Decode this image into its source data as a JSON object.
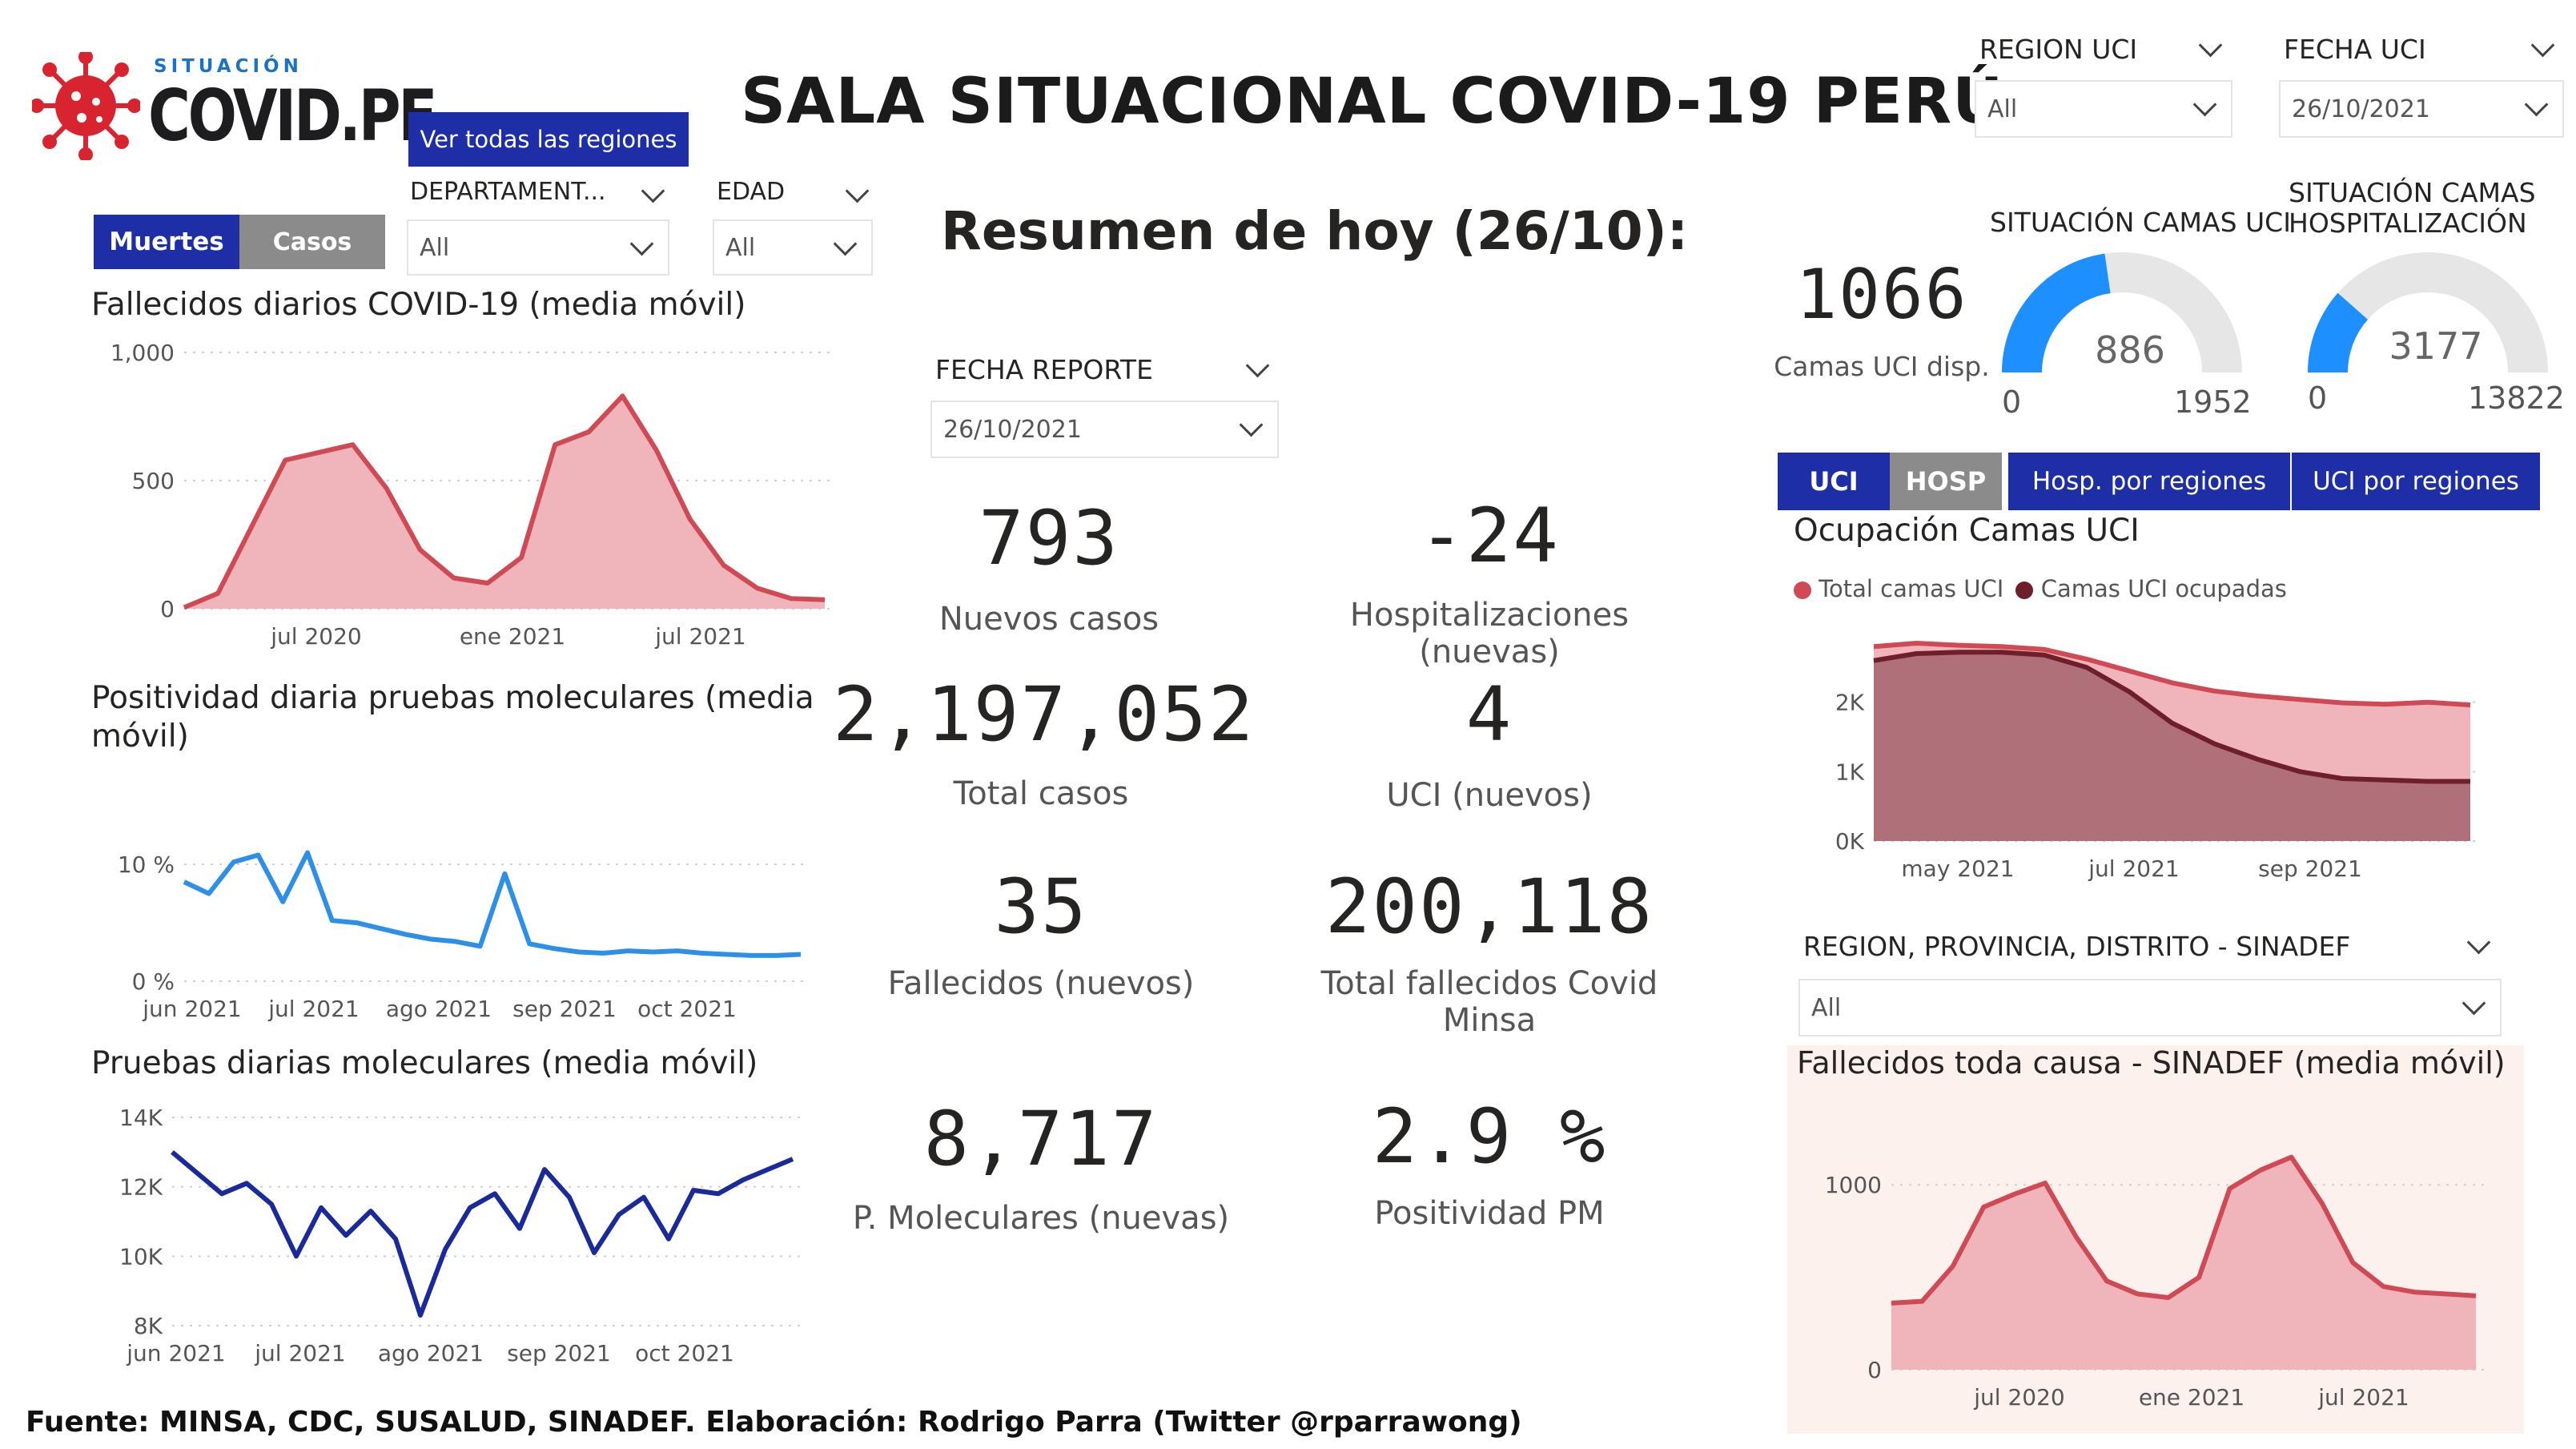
{
  "logo": {
    "small": "SITUACIÓN",
    "big": "COVID.PE"
  },
  "header": {
    "title": "SALA SITUACIONAL COVID-19 PERÚ",
    "all_regions_button": "Ver todas las regiones"
  },
  "left_toggle": {
    "muertes": "Muertes",
    "casos": "Casos"
  },
  "filters": {
    "departamento": {
      "label": "DEPARTAMENT...",
      "value": "All"
    },
    "edad": {
      "label": "EDAD",
      "value": "All"
    },
    "region_uci": {
      "label": "REGION UCI",
      "value": "All"
    },
    "fecha_uci": {
      "label": "FECHA UCI",
      "value": "26/10/2021"
    },
    "fecha_reporte": {
      "label": "FECHA REPORTE",
      "value": "26/10/2021"
    },
    "sinadef_region": {
      "label": "REGION, PROVINCIA, DISTRITO - SINADEF",
      "value": "All"
    }
  },
  "summary": {
    "heading": "Resumen de hoy (26/10):",
    "kpis": [
      {
        "value": "793",
        "label": "Nuevos casos"
      },
      {
        "value": "-24",
        "label": "Hospitalizaciones (nuevas)"
      },
      {
        "value": "2,197,052",
        "label": "Total casos"
      },
      {
        "value": "4",
        "label": "UCI (nuevos)"
      },
      {
        "value": "35",
        "label": "Fallecidos  (nuevos)"
      },
      {
        "value": "200,118",
        "label": "Total fallecidos Covid Minsa"
      },
      {
        "value": "8,717",
        "label": "P. Moleculares (nuevas)"
      },
      {
        "value": "2.9 %",
        "label": "Positividad PM"
      }
    ]
  },
  "beds": {
    "available_value": "1066",
    "available_label": "Camas UCI disp.",
    "uci_gauge": {
      "title": "SITUACIÓN CAMAS UCI",
      "value": "886",
      "min": "0",
      "max": "1952",
      "fraction": 0.454
    },
    "hosp_gauge": {
      "title": "SITUACIÓN CAMAS HOSPITALIZACIÓN",
      "value": "3177",
      "min": "0",
      "max": "13822",
      "fraction": 0.23
    }
  },
  "right_tabs": {
    "uci": "UCI",
    "hosp": "HOSP",
    "hosp_regiones": "Hosp. por regiones",
    "uci_regiones": "UCI por regiones"
  },
  "colors": {
    "navy": "#1d2ea6",
    "grey": "#8b8b8b",
    "red": "#d04a55",
    "redfill": "#efb5bb",
    "darkred": "#6e1f2a",
    "blue": "#2e8fe8",
    "darkblue": "#1a2a9a"
  },
  "chart_data": [
    {
      "type": "area",
      "title": "Fallecidos diarios COVID-19 (media móvil)",
      "x_ticks": [
        "jul 2020",
        "ene 2021",
        "jul 2021"
      ],
      "y_ticks": [
        "0",
        "500",
        "1,000"
      ],
      "ylim": [
        0,
        1000
      ],
      "x": [
        "2020-03",
        "2020-04",
        "2020-05",
        "2020-06",
        "2020-07",
        "2020-08",
        "2020-09",
        "2020-10",
        "2020-11",
        "2020-12",
        "2021-01",
        "2021-02",
        "2021-03",
        "2021-04",
        "2021-05",
        "2021-06",
        "2021-07",
        "2021-08",
        "2021-09",
        "2021-10"
      ],
      "values": [
        5,
        60,
        320,
        580,
        610,
        640,
        470,
        230,
        120,
        100,
        200,
        640,
        690,
        830,
        620,
        350,
        170,
        80,
        40,
        35
      ]
    },
    {
      "type": "line",
      "title": "Positividad diaria pruebas moleculares (media móvil)",
      "x_ticks": [
        "jun 2021",
        "jul 2021",
        "ago 2021",
        "sep 2021",
        "oct 2021"
      ],
      "y_ticks": [
        "0 %",
        "10 %"
      ],
      "ylim": [
        0,
        12
      ],
      "values": [
        8.5,
        7.5,
        10.2,
        10.8,
        6.8,
        11.0,
        5.2,
        5.0,
        4.5,
        4.0,
        3.6,
        3.4,
        3.0,
        9.2,
        3.2,
        2.8,
        2.5,
        2.4,
        2.6,
        2.5,
        2.6,
        2.4,
        2.3,
        2.2,
        2.2,
        2.3
      ]
    },
    {
      "type": "line",
      "title": "Pruebas diarias moleculares (media móvil)",
      "x_ticks": [
        "jun 2021",
        "jul 2021",
        "ago 2021",
        "sep 2021",
        "oct 2021"
      ],
      "y_ticks": [
        "8K",
        "10K",
        "12K",
        "14K"
      ],
      "ylim": [
        8000,
        14000
      ],
      "values": [
        13000,
        12400,
        11800,
        12100,
        11500,
        10000,
        11400,
        10600,
        11300,
        10500,
        8300,
        10200,
        11400,
        11800,
        10800,
        12500,
        11700,
        10100,
        11200,
        11700,
        10500,
        11900,
        11800,
        12200,
        12500,
        12800
      ]
    },
    {
      "type": "area",
      "title": "Ocupación Camas UCI",
      "legend": [
        "Total camas UCI",
        "Camas UCI ocupadas"
      ],
      "legend_position": "top-left",
      "x_ticks": [
        "may 2021",
        "jul 2021",
        "sep 2021"
      ],
      "y_ticks": [
        "0K",
        "1K",
        "2K"
      ],
      "ylim": [
        0,
        3000
      ],
      "series": [
        {
          "name": "Total camas UCI",
          "values": [
            2800,
            2850,
            2820,
            2800,
            2760,
            2620,
            2450,
            2280,
            2160,
            2090,
            2040,
            1990,
            1970,
            2000,
            1960
          ]
        },
        {
          "name": "Camas UCI ocupadas",
          "values": [
            2600,
            2700,
            2720,
            2720,
            2680,
            2500,
            2150,
            1700,
            1400,
            1180,
            1000,
            900,
            880,
            860,
            860
          ]
        }
      ]
    },
    {
      "type": "area",
      "title": "Fallecidos toda causa - SINADEF (media móvil)",
      "x_ticks": [
        "jul 2020",
        "ene 2021",
        "jul 2021"
      ],
      "y_ticks": [
        "0",
        "1000"
      ],
      "ylim": [
        0,
        1300
      ],
      "values": [
        360,
        370,
        560,
        880,
        950,
        1010,
        720,
        480,
        410,
        390,
        500,
        980,
        1080,
        1150,
        900,
        580,
        450,
        420,
        410,
        400
      ]
    }
  ],
  "footer": "Fuente: MINSA, CDC, SUSALUD, SINADEF. Elaboración: Rodrigo Parra (Twitter @rparrawong)"
}
